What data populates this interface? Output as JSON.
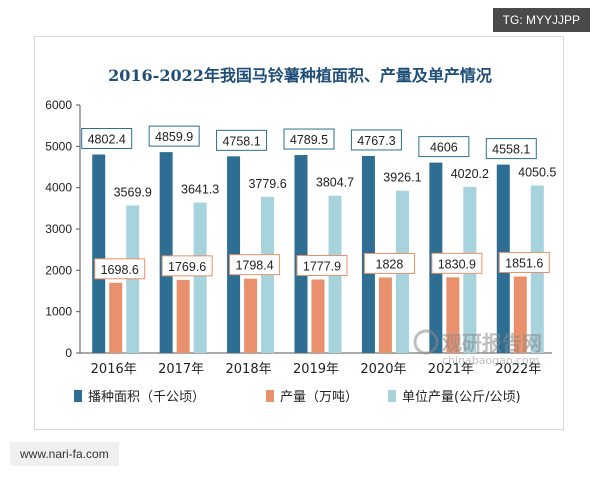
{
  "top_tag": "TG: MYYJJPP",
  "bottom_tag": "www.nari-fa.com",
  "watermark": {
    "name": "观研报告网",
    "site": "chinabaogao.com"
  },
  "colors": {
    "series1": "#2e6e92",
    "series2": "#e9906c",
    "series3": "#a6d3dc",
    "axis": "#555555",
    "title": "#1f4e79"
  },
  "chart_data": {
    "type": "bar",
    "title": "2016-2022年我国马铃薯种植面积、产量及单产情况",
    "categories": [
      "2016年",
      "2017年",
      "2018年",
      "2019年",
      "2020年",
      "2021年",
      "2022年"
    ],
    "ylim": [
      0,
      6000
    ],
    "yticks": [
      "0",
      "1000",
      "2000",
      "3000",
      "4000",
      "5000",
      "6000"
    ],
    "series": [
      {
        "name": "播种面积（千公顷）",
        "values": [
          4802.4,
          4859.9,
          4758.1,
          4789.5,
          4767.3,
          4606,
          4558.1
        ]
      },
      {
        "name": "产量（万吨）",
        "values": [
          1698.6,
          1769.6,
          1798.4,
          1777.9,
          1828,
          1830.9,
          1851.6
        ]
      },
      {
        "name": "单位产量(公斤/公顷)",
        "values": [
          3569.9,
          3641.3,
          3779.6,
          3804.7,
          3926.1,
          4020.2,
          4050.5
        ]
      }
    ],
    "labels": [
      [
        "4802.4",
        "4859.9",
        "4758.1",
        "4789.5",
        "4767.3",
        "4606",
        "4558.1"
      ],
      [
        "1698.6",
        "1769.6",
        "1798.4",
        "1777.9",
        "1828",
        "1830.9",
        "1851.6"
      ],
      [
        "3569.9",
        "3641.3",
        "3779.6",
        "3804.7",
        "3926.1",
        "4020.2",
        "4050.5"
      ]
    ]
  }
}
